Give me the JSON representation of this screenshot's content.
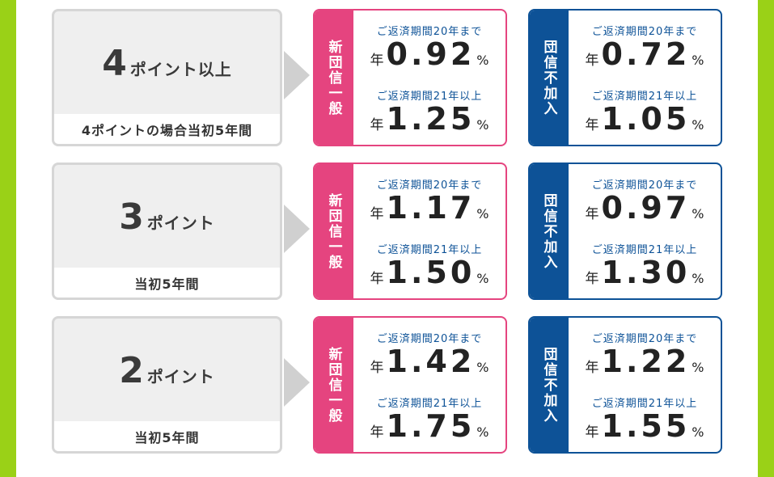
{
  "colors": {
    "side_bar": "#9ad117",
    "pink_accent": "#e5447f",
    "blue_accent": "#0d5297",
    "gray_box": "#efefef"
  },
  "rows": [
    {
      "point_number": "4",
      "point_suffix": "ポイント以上",
      "point_caption": "4ポイントの場合当初5年間",
      "plans": [
        {
          "label": "新団信一般",
          "period1": "ご返済期間20年まで",
          "year_prefix1": "年",
          "rate1": "0.92",
          "percent1": "%",
          "period2": "ご返済期間21年以上",
          "year_prefix2": "年",
          "rate2": "1.25",
          "percent2": "%"
        },
        {
          "label": "団信不加入",
          "period1": "ご返済期間20年まで",
          "year_prefix1": "年",
          "rate1": "0.72",
          "percent1": "%",
          "period2": "ご返済期間21年以上",
          "year_prefix2": "年",
          "rate2": "1.05",
          "percent2": "%"
        }
      ]
    },
    {
      "point_number": "3",
      "point_suffix": "ポイント",
      "point_caption": "当初5年間",
      "plans": [
        {
          "label": "新団信一般",
          "period1": "ご返済期間20年まで",
          "year_prefix1": "年",
          "rate1": "1.17",
          "percent1": "%",
          "period2": "ご返済期間21年以上",
          "year_prefix2": "年",
          "rate2": "1.50",
          "percent2": "%"
        },
        {
          "label": "団信不加入",
          "period1": "ご返済期間20年まで",
          "year_prefix1": "年",
          "rate1": "0.97",
          "percent1": "%",
          "period2": "ご返済期間21年以上",
          "year_prefix2": "年",
          "rate2": "1.30",
          "percent2": "%"
        }
      ]
    },
    {
      "point_number": "2",
      "point_suffix": "ポイント",
      "point_caption": "当初5年間",
      "plans": [
        {
          "label": "新団信一般",
          "period1": "ご返済期間20年まで",
          "year_prefix1": "年",
          "rate1": "1.42",
          "percent1": "%",
          "period2": "ご返済期間21年以上",
          "year_prefix2": "年",
          "rate2": "1.75",
          "percent2": "%"
        },
        {
          "label": "団信不加入",
          "period1": "ご返済期間20年まで",
          "year_prefix1": "年",
          "rate1": "1.22",
          "percent1": "%",
          "period2": "ご返済期間21年以上",
          "year_prefix2": "年",
          "rate2": "1.55",
          "percent2": "%"
        }
      ]
    }
  ]
}
